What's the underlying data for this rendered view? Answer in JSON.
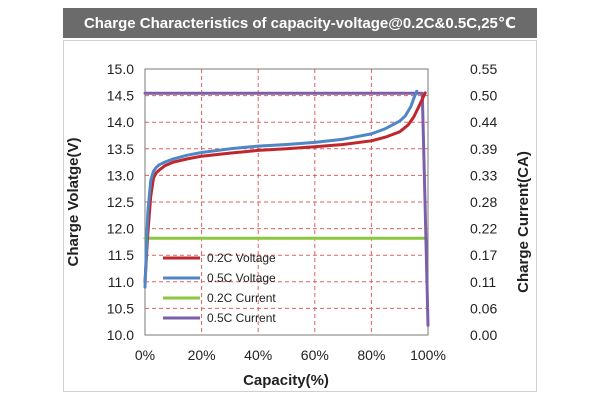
{
  "chart_data": {
    "type": "line",
    "title": "Charge Characteristics of capacity-voltage@0.2C&0.5C,25℃",
    "xlabel": "Capacity(%)",
    "ylabel": "Charge Volatge(V)",
    "y2label": "Charge Current(CA)",
    "xlim": [
      0,
      100
    ],
    "ylim": [
      10.0,
      15.0
    ],
    "y2lim": [
      0.0,
      0.55
    ],
    "x_ticks": [
      "0%",
      "20%",
      "40%",
      "60%",
      "80%",
      "100%"
    ],
    "y_ticks": [
      "10.0",
      "10.5",
      "11.0",
      "11.5",
      "12.0",
      "12.5",
      "13.0",
      "13.5",
      "14.0",
      "14.5",
      "15.0"
    ],
    "y2_ticks": [
      "0.00",
      "0.06",
      "0.11",
      "0.17",
      "0.22",
      "0.28",
      "0.33",
      "0.39",
      "0.44",
      "0.50",
      "0.55"
    ],
    "grid": true,
    "legend_position": "bottom-left",
    "series": [
      {
        "name": "0.2C Voltage",
        "axis": "left",
        "color": "#c0272d",
        "x": [
          0,
          1,
          2,
          3,
          4,
          5,
          7,
          10,
          15,
          20,
          30,
          40,
          50,
          60,
          70,
          80,
          85,
          90,
          93,
          95,
          97,
          99
        ],
        "y": [
          11.0,
          11.9,
          12.6,
          12.95,
          13.05,
          13.1,
          13.18,
          13.25,
          13.31,
          13.36,
          13.42,
          13.47,
          13.5,
          13.54,
          13.58,
          13.65,
          13.72,
          13.82,
          13.95,
          14.1,
          14.32,
          14.55
        ]
      },
      {
        "name": "0.5C Voltage",
        "axis": "left",
        "color": "#4f86c6",
        "x": [
          0,
          1,
          2,
          3,
          4,
          5,
          7,
          10,
          15,
          20,
          30,
          40,
          50,
          60,
          70,
          80,
          85,
          90,
          92,
          94,
          95,
          96
        ],
        "y": [
          10.9,
          12.3,
          12.9,
          13.08,
          13.15,
          13.2,
          13.25,
          13.31,
          13.38,
          13.43,
          13.5,
          13.55,
          13.58,
          13.62,
          13.68,
          13.78,
          13.88,
          14.02,
          14.12,
          14.3,
          14.45,
          14.58
        ]
      },
      {
        "name": "0.2C Current",
        "axis": "right",
        "color": "#8dc641",
        "x": [
          0,
          99
        ],
        "y": [
          0.2,
          0.2
        ]
      },
      {
        "name": "0.5C Current",
        "axis": "right",
        "color": "#7b5fa8",
        "x": [
          0,
          98,
          99,
          100
        ],
        "y": [
          0.5,
          0.5,
          0.26,
          0.02
        ]
      }
    ]
  }
}
